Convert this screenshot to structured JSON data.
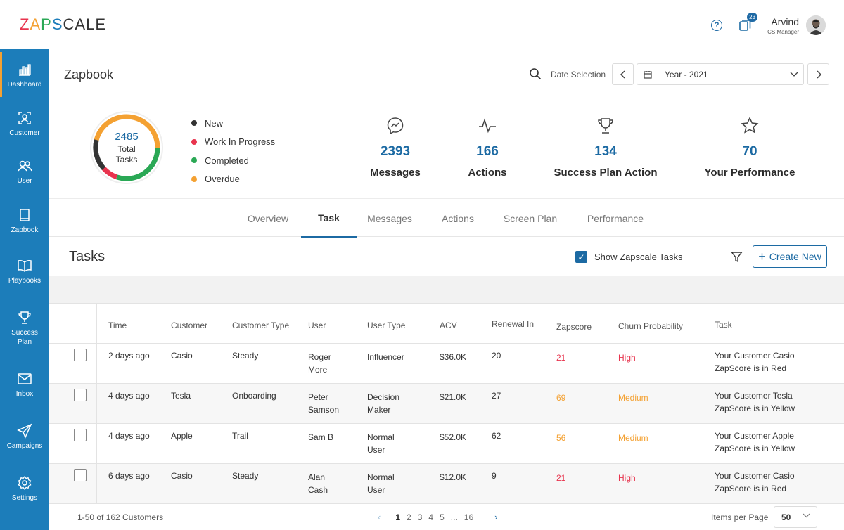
{
  "brand": {
    "logo_letters": [
      "Z",
      "A",
      "P",
      "S",
      "C",
      "A",
      "L",
      "E"
    ],
    "logo_colors": [
      "#e8344e",
      "#f4a132",
      "#2aa855",
      "#1c7dba",
      "#333333",
      "#333333",
      "#333333",
      "#333333"
    ]
  },
  "topbar": {
    "help_icon": "question-icon",
    "notification_count": "23",
    "user_name": "Arvind",
    "user_role": "CS Manager"
  },
  "sidebar": {
    "items": [
      {
        "label": "Dashboard",
        "icon": "bar-chart-icon",
        "active": true
      },
      {
        "label": "Customer",
        "icon": "customer-icon"
      },
      {
        "label": "User",
        "icon": "users-icon"
      },
      {
        "label": "Zapbook",
        "icon": "book-icon"
      },
      {
        "label": "Playbooks",
        "icon": "open-book-icon"
      },
      {
        "label": "Success\nPlan",
        "icon": "trophy-icon"
      },
      {
        "label": "Inbox",
        "icon": "mail-icon"
      },
      {
        "label": "Campaigns",
        "icon": "paper-plane-icon"
      },
      {
        "label": "Settings",
        "icon": "gear-icon"
      }
    ]
  },
  "header": {
    "title": "Zapbook",
    "date_label": "Date Selection",
    "date_value": "Year - 2021"
  },
  "summary": {
    "total": "2485",
    "total_label": "Total Tasks",
    "legend": [
      {
        "label": "New",
        "color": "#333333"
      },
      {
        "label": "Work In Progress",
        "color": "#e8344e"
      },
      {
        "label": "Completed",
        "color": "#2aa855"
      },
      {
        "label": "Overdue",
        "color": "#f4a132"
      }
    ],
    "stats": [
      {
        "value": "2393",
        "label": "Messages",
        "icon": "messenger-icon"
      },
      {
        "value": "166",
        "label": "Actions",
        "icon": "activity-icon"
      },
      {
        "value": "134",
        "label": "Success Plan Action",
        "icon": "trophy-icon"
      },
      {
        "value": "70",
        "label": "Your Performance",
        "icon": "star-icon"
      }
    ]
  },
  "tabs": [
    "Overview",
    "Task",
    "Messages",
    "Actions",
    "Screen Plan",
    "Performance"
  ],
  "active_tab": "Task",
  "tasks": {
    "title": "Tasks",
    "show_label": "Show Zapscale Tasks",
    "create_label": "Create New",
    "columns": [
      "Time",
      "Customer",
      "Customer Type",
      "User",
      "User Type",
      "ACV",
      "Renewal In",
      "Zapscore",
      "Churn Probability",
      "Task"
    ],
    "rows": [
      {
        "time": "2 days ago",
        "customer": "Casio",
        "type": "Steady",
        "user": "Roger\nMore",
        "user_type": "Influencer",
        "acv": "$36.0K",
        "renewal": "20",
        "zapscore": "21",
        "churn": "High",
        "task": "Your Customer Casio\nZapScore is in Red",
        "level": "red"
      },
      {
        "time": "4 days ago",
        "customer": "Tesla",
        "type": "Onboarding",
        "user": "Peter\nSamson",
        "user_type": "Decision\nMaker",
        "acv": "$21.0K",
        "renewal": "27",
        "zapscore": "69",
        "churn": "Medium",
        "task": "Your Customer Tesla\nZapScore is in Yellow",
        "level": "orange"
      },
      {
        "time": "4 days ago",
        "customer": "Apple",
        "type": "Trail",
        "user": "Sam B",
        "user_type": "Normal\nUser",
        "acv": "$52.0K",
        "renewal": "62",
        "zapscore": "56",
        "churn": "Medium",
        "task": "Your Customer Apple\nZapScore is in Yellow",
        "level": "orange"
      },
      {
        "time": "6 days ago",
        "customer": "Casio",
        "type": "Steady",
        "user": "Alan\nCash",
        "user_type": "Normal\nUser",
        "acv": "$12.0K",
        "renewal": "9",
        "zapscore": "21",
        "churn": "High",
        "task": "Your Customer Casio\nZapScore is in Red",
        "level": "red"
      }
    ]
  },
  "footer": {
    "count_text": "1-50 of 162 Customers",
    "pages": [
      "1",
      "2",
      "3",
      "4",
      "5",
      "...",
      "16"
    ],
    "current_page": "1",
    "items_per_page_label": "Items per Page",
    "items_per_page": "50"
  },
  "colors": {
    "primary": "#1c7dba",
    "accent": "#f4a132",
    "danger": "#e8344e",
    "success": "#2aa855"
  }
}
